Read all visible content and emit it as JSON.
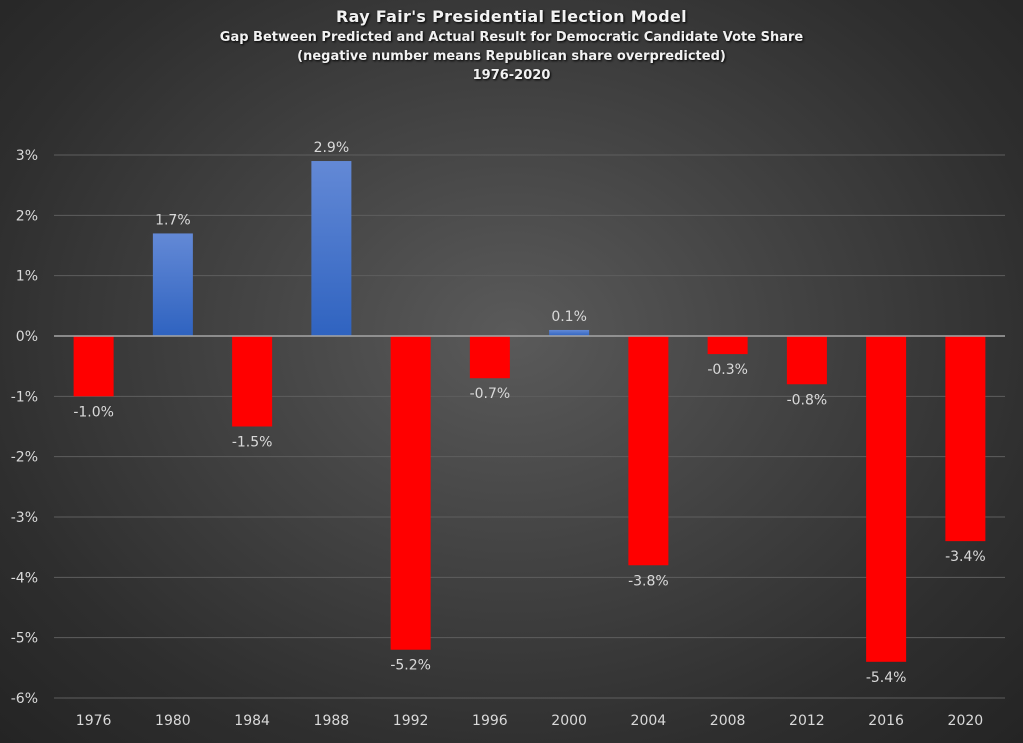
{
  "chart_data": {
    "type": "bar",
    "title": "Ray Fair's Presidential Election Model",
    "subtitle": "Gap Between Predicted and Actual Result for Democratic Candidate Vote Share",
    "subtitle2": "(negative number means Republican share overpredicted)",
    "subtitle3": "1976-2020",
    "categories": [
      "1976",
      "1980",
      "1984",
      "1988",
      "1992",
      "1996",
      "2000",
      "2004",
      "2008",
      "2012",
      "2016",
      "2020"
    ],
    "values": [
      -1.0,
      1.7,
      -1.5,
      2.9,
      -5.2,
      -0.7,
      0.1,
      -3.8,
      -0.3,
      -0.8,
      -5.4,
      -3.4
    ],
    "data_labels": [
      "-1.0%",
      "1.7%",
      "-1.5%",
      "2.9%",
      "-5.2%",
      "-0.7%",
      "0.1%",
      "-3.8%",
      "-0.3%",
      "-0.8%",
      "-5.4%",
      "-3.4%"
    ],
    "y_ticks": [
      3,
      2,
      1,
      0,
      -1,
      -2,
      -3,
      -4,
      -5,
      -6
    ],
    "y_tick_labels": [
      "3%",
      "2%",
      "1%",
      "0%",
      "-1%",
      "-2%",
      "-3%",
      "-4%",
      "-5%",
      "-6%"
    ],
    "ylim": [
      -6,
      3
    ],
    "xlabel": "",
    "ylabel": "",
    "grid": true,
    "colors": {
      "positive": "#4472c4",
      "negative": "#ff0000"
    }
  }
}
